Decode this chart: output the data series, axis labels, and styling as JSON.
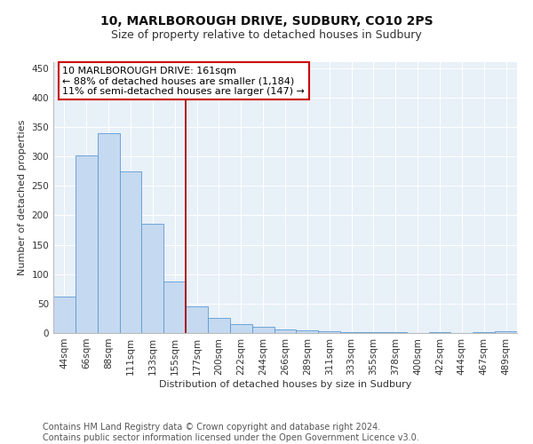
{
  "title": "10, MARLBOROUGH DRIVE, SUDBURY, CO10 2PS",
  "subtitle": "Size of property relative to detached houses in Sudbury",
  "xlabel": "Distribution of detached houses by size in Sudbury",
  "ylabel": "Number of detached properties",
  "footer_line1": "Contains HM Land Registry data © Crown copyright and database right 2024.",
  "footer_line2": "Contains public sector information licensed under the Open Government Licence v3.0.",
  "bar_labels": [
    "44sqm",
    "66sqm",
    "88sqm",
    "111sqm",
    "133sqm",
    "155sqm",
    "177sqm",
    "200sqm",
    "222sqm",
    "244sqm",
    "266sqm",
    "289sqm",
    "311sqm",
    "333sqm",
    "355sqm",
    "378sqm",
    "400sqm",
    "422sqm",
    "444sqm",
    "467sqm",
    "489sqm"
  ],
  "bar_values": [
    62,
    301,
    340,
    275,
    185,
    88,
    45,
    25,
    15,
    10,
    6,
    4,
    3,
    2,
    1,
    1,
    0,
    1,
    0,
    1,
    3
  ],
  "bar_color": "#c5d9f0",
  "bar_edge_color": "#5b9bd5",
  "vline_x": 5.5,
  "vline_color": "#aa0000",
  "annotation_line1": "10 MARLBOROUGH DRIVE: 161sqm",
  "annotation_line2": "← 88% of detached houses are smaller (1,184)",
  "annotation_line3": "11% of semi-detached houses are larger (147) →",
  "annotation_box_color": "#cc0000",
  "ylim": [
    0,
    460
  ],
  "yticks": [
    0,
    50,
    100,
    150,
    200,
    250,
    300,
    350,
    400,
    450
  ],
  "plot_bg_color": "#e8f0f8",
  "fig_bg_color": "#ffffff",
  "grid_color": "#ffffff",
  "title_fontsize": 10,
  "subtitle_fontsize": 9,
  "axis_label_fontsize": 8,
  "tick_fontsize": 7.5,
  "annot_fontsize": 8,
  "footer_fontsize": 7
}
